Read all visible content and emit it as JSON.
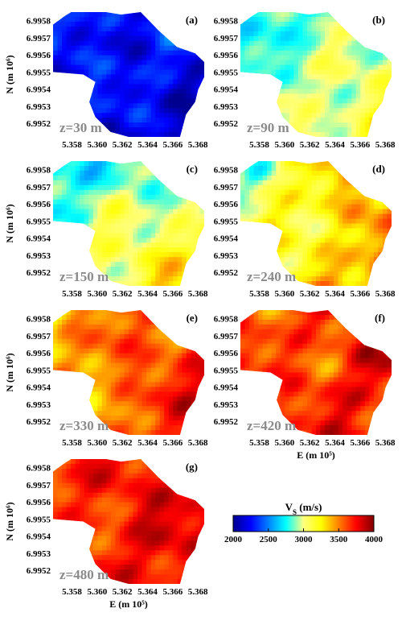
{
  "chart_data": {
    "type": "heatmap",
    "xaxis": {
      "label": "E (m 10⁵)",
      "ticks": [
        5.358,
        5.36,
        5.362,
        5.364,
        5.366,
        5.368
      ],
      "tick_labels": [
        "5.358",
        "5.360",
        "5.362",
        "5.364",
        "5.366",
        "5.368"
      ],
      "range": [
        5.3565,
        5.3685
      ]
    },
    "yaxis": {
      "label": "N (m 10⁶)",
      "ticks": [
        6.9958,
        6.9957,
        6.9956,
        6.9955,
        6.9954,
        6.9953,
        6.9952
      ],
      "tick_labels": [
        "6.9958",
        "6.9957",
        "6.9956",
        "6.9955",
        "6.9954",
        "6.9953",
        "6.9952"
      ],
      "range": [
        6.99512,
        6.99585
      ]
    },
    "colorbar": {
      "title": "V",
      "title_sub": "S",
      "title_unit": " (m/s)",
      "range": [
        2000,
        4000
      ],
      "ticks": [
        2000,
        2500,
        3000,
        3500,
        4000
      ],
      "tick_labels": [
        "2000",
        "2500",
        "3000",
        "3500",
        "4000"
      ],
      "colors": [
        "#00008f",
        "#0000ff",
        "#0080ff",
        "#00ffff",
        "#ffff80",
        "#ffff00",
        "#ff8000",
        "#ff0000",
        "#800000"
      ]
    },
    "panels": [
      {
        "label": "(a)",
        "depth_label": "z=30 m",
        "base": 2250,
        "spread": 260,
        "east_trend": 0,
        "south_trend": -120,
        "seed": 1
      },
      {
        "label": "(b)",
        "depth_label": "z=90 m",
        "base": 2950,
        "spread": 230,
        "east_trend": 200,
        "south_trend": 250,
        "seed": 2
      },
      {
        "label": "(c)",
        "depth_label": "z=150 m",
        "base": 3000,
        "spread": 260,
        "east_trend": 250,
        "south_trend": 400,
        "seed": 3
      },
      {
        "label": "(d)",
        "depth_label": "z=240 m",
        "base": 3250,
        "spread": 300,
        "east_trend": 450,
        "south_trend": 100,
        "seed": 4
      },
      {
        "label": "(e)",
        "depth_label": "z=330 m",
        "base": 3550,
        "spread": 260,
        "east_trend": 350,
        "south_trend": 0,
        "seed": 5
      },
      {
        "label": "(f)",
        "depth_label": "z=420 m",
        "base": 3650,
        "spread": 280,
        "east_trend": 200,
        "south_trend": 0,
        "seed": 6
      },
      {
        "label": "(g)",
        "depth_label": "z=480 m",
        "base": 3720,
        "spread": 230,
        "east_trend": 150,
        "south_trend": 0,
        "seed": 7
      }
    ]
  }
}
